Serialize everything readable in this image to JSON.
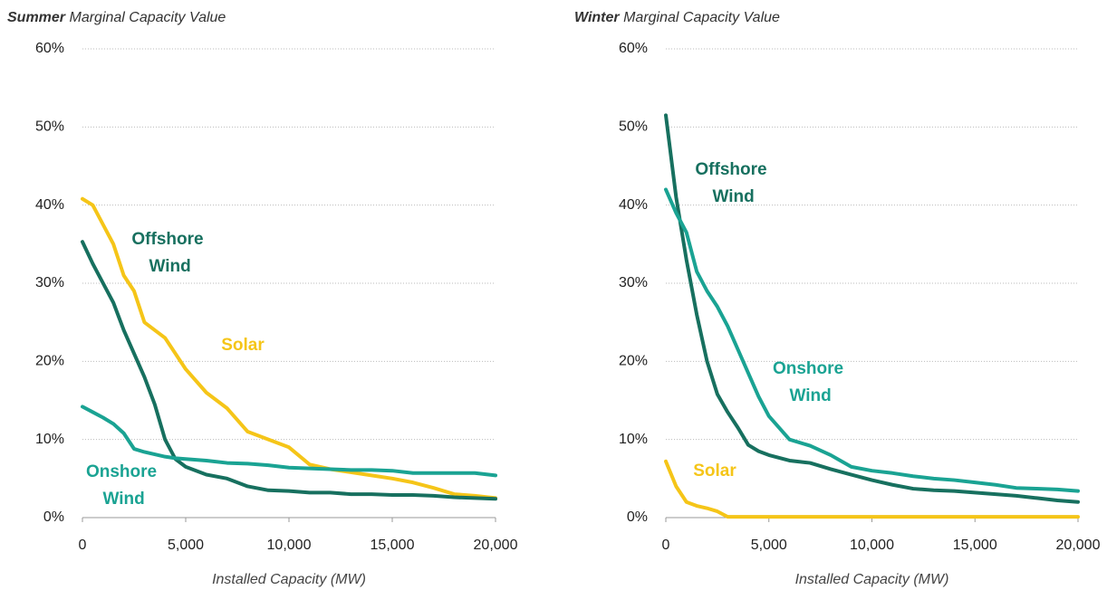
{
  "chart_data": [
    {
      "type": "line",
      "season": "Summer",
      "title": "Marginal Capacity Value",
      "x_label": "Installed Capacity (MW)",
      "x": [
        0,
        500,
        1000,
        1500,
        2000,
        2500,
        3000,
        3500,
        4000,
        4500,
        5000,
        6000,
        7000,
        8000,
        9000,
        10000,
        11000,
        12000,
        13000,
        14000,
        15000,
        16000,
        17000,
        18000,
        19000,
        20000
      ],
      "series": [
        {
          "name": "Solar",
          "color": "#f5c518",
          "values": [
            40.8,
            40,
            37.5,
            35,
            31,
            29,
            25,
            24,
            23,
            21,
            19,
            16,
            14,
            11,
            10,
            9,
            6.8,
            6.2,
            5.8,
            5.4,
            5,
            4.5,
            3.8,
            3,
            2.8,
            2.5
          ]
        },
        {
          "name": "Offshore Wind",
          "color": "#17705f",
          "values": [
            35.3,
            32.5,
            30,
            27.5,
            24,
            21,
            18,
            14.5,
            10,
            7.5,
            6.5,
            5.5,
            5,
            4,
            3.5,
            3.4,
            3.2,
            3.2,
            3,
            3,
            2.9,
            2.9,
            2.8,
            2.6,
            2.5,
            2.4
          ]
        },
        {
          "name": "Onshore Wind",
          "color": "#1aa393",
          "values": [
            14.2,
            13.5,
            12.8,
            12,
            10.8,
            8.8,
            8.4,
            8.1,
            7.8,
            7.6,
            7.5,
            7.3,
            7,
            6.9,
            6.7,
            6.4,
            6.3,
            6.2,
            6.1,
            6.1,
            6,
            5.7,
            5.7,
            5.7,
            5.7,
            5.4
          ]
        }
      ],
      "xlim": [
        0,
        20000
      ],
      "xticks": [
        0,
        {
          "value": 5000,
          "label": "5,000"
        },
        {
          "value": 10000,
          "label": "10,000"
        },
        {
          "value": 15000,
          "label": "15,000"
        },
        {
          "value": 20000,
          "label": "20,000"
        }
      ],
      "ylim": [
        0,
        60
      ],
      "yticks": [
        {
          "value": 0,
          "label": "0%"
        },
        {
          "value": 10,
          "label": "10%"
        },
        {
          "value": 20,
          "label": "20%"
        },
        {
          "value": 30,
          "label": "30%"
        },
        {
          "value": 40,
          "label": "40%"
        },
        {
          "value": 50,
          "label": "50%"
        },
        {
          "value": 60,
          "label": "60%"
        }
      ],
      "grid": true
    },
    {
      "type": "line",
      "season": "Winter",
      "title": "Marginal Capacity Value",
      "x_label": "Installed Capacity (MW)",
      "x": [
        0,
        500,
        1000,
        1500,
        2000,
        2500,
        3000,
        3500,
        4000,
        4500,
        5000,
        6000,
        7000,
        8000,
        9000,
        10000,
        11000,
        12000,
        13000,
        14000,
        15000,
        16000,
        17000,
        18000,
        19000,
        20000
      ],
      "series": [
        {
          "name": "Solar",
          "color": "#f5c518",
          "values": [
            7.2,
            4,
            2,
            1.5,
            1.2,
            0.8,
            0.1,
            0.1,
            0.1,
            0.1,
            0.1,
            0.1,
            0.1,
            0.1,
            0.1,
            0.1,
            0.1,
            0.1,
            0.1,
            0.1,
            0.1,
            0.1,
            0.1,
            0.1,
            0.1,
            0.1
          ]
        },
        {
          "name": "Offshore Wind",
          "color": "#17705f",
          "values": [
            51.5,
            41,
            33,
            26,
            20,
            15.8,
            13.5,
            11.5,
            9.3,
            8.5,
            8,
            7.3,
            7,
            6.2,
            5.5,
            4.8,
            4.2,
            3.7,
            3.5,
            3.4,
            3.2,
            3,
            2.8,
            2.5,
            2.2,
            2
          ]
        },
        {
          "name": "Onshore Wind",
          "color": "#1aa393",
          "values": [
            42,
            39,
            36.5,
            31.5,
            29,
            27,
            24.5,
            21.5,
            18.5,
            15.5,
            13,
            10,
            9.2,
            8,
            6.5,
            6,
            5.7,
            5.3,
            5,
            4.8,
            4.5,
            4.2,
            3.8,
            3.7,
            3.6,
            3.4
          ]
        }
      ],
      "xlim": [
        0,
        20000
      ],
      "xticks": [
        0,
        {
          "value": 5000,
          "label": "5,000"
        },
        {
          "value": 10000,
          "label": "10,000"
        },
        {
          "value": 15000,
          "label": "15,000"
        },
        {
          "value": 20000,
          "label": "20,000"
        }
      ],
      "ylim": [
        0,
        60
      ],
      "yticks": [
        {
          "value": 0,
          "label": "0%"
        },
        {
          "value": 10,
          "label": "10%"
        },
        {
          "value": 20,
          "label": "20%"
        },
        {
          "value": 30,
          "label": "30%"
        },
        {
          "value": 40,
          "label": "40%"
        },
        {
          "value": 50,
          "label": "50%"
        },
        {
          "value": 60,
          "label": "60%"
        }
      ],
      "grid": true
    }
  ]
}
